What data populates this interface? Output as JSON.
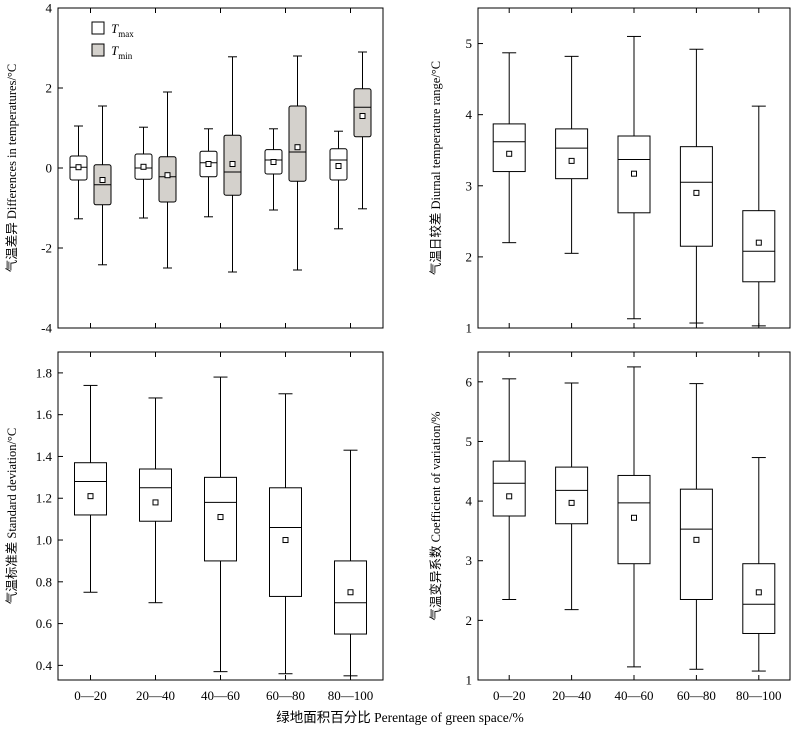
{
  "figure": {
    "x_axis_title": "绿地面积百分比 Perentage of green space/%"
  },
  "chart_data": [
    {
      "type": "box",
      "id": "a",
      "categories": [
        "0—20",
        "20—40",
        "40—60",
        "60—80",
        "80—100"
      ],
      "ylabel": "气温差异 Differences in temperatures/°C",
      "ylim": [
        -4,
        4
      ],
      "yticks": [
        -4,
        -2,
        0,
        2,
        4
      ],
      "legend": {
        "placement": "top-left",
        "items": [
          {
            "symbol": "T",
            "sub": "max",
            "fill": "#ffffff"
          },
          {
            "symbol": "T",
            "sub": "min",
            "fill": "#d4d1cc"
          }
        ]
      },
      "series": [
        {
          "name": "Tmax",
          "fill": "#ffffff",
          "boxes": [
            {
              "min": -1.27,
              "q1": -0.3,
              "median": 0.02,
              "q3": 0.3,
              "max": 1.05,
              "mean": 0.02
            },
            {
              "min": -1.25,
              "q1": -0.28,
              "median": 0.0,
              "q3": 0.35,
              "max": 1.02,
              "mean": 0.03
            },
            {
              "min": -1.22,
              "q1": -0.22,
              "median": 0.13,
              "q3": 0.42,
              "max": 0.98,
              "mean": 0.1
            },
            {
              "min": -1.05,
              "q1": -0.15,
              "median": 0.2,
              "q3": 0.46,
              "max": 0.98,
              "mean": 0.15
            },
            {
              "min": -1.52,
              "q1": -0.3,
              "median": 0.2,
              "q3": 0.48,
              "max": 0.92,
              "mean": 0.05
            }
          ]
        },
        {
          "name": "Tmin",
          "fill": "#d4d1cc",
          "boxes": [
            {
              "min": -2.42,
              "q1": -0.92,
              "median": -0.42,
              "q3": 0.08,
              "max": 1.55,
              "mean": -0.3
            },
            {
              "min": -2.5,
              "q1": -0.85,
              "median": -0.22,
              "q3": 0.28,
              "max": 1.9,
              "mean": -0.18
            },
            {
              "min": -2.6,
              "q1": -0.68,
              "median": -0.1,
              "q3": 0.82,
              "max": 2.78,
              "mean": 0.1
            },
            {
              "min": -2.55,
              "q1": -0.33,
              "median": 0.4,
              "q3": 1.55,
              "max": 2.8,
              "mean": 0.52
            },
            {
              "min": -1.02,
              "q1": 0.78,
              "median": 1.52,
              "q3": 1.98,
              "max": 2.9,
              "mean": 1.3
            }
          ]
        }
      ]
    },
    {
      "type": "box",
      "id": "b",
      "categories": [
        "0—20",
        "20—40",
        "40—60",
        "60—80",
        "80—100"
      ],
      "ylabel": "气温日较差 Diurnal temperature range/°C",
      "ylim": [
        1,
        5.5
      ],
      "yticks": [
        1,
        2,
        3,
        4,
        5
      ],
      "series": [
        {
          "fill": "#ffffff",
          "boxes": [
            {
              "min": 2.2,
              "q1": 3.2,
              "median": 3.62,
              "q3": 3.87,
              "max": 4.87,
              "mean": 3.45
            },
            {
              "min": 2.05,
              "q1": 3.1,
              "median": 3.53,
              "q3": 3.8,
              "max": 4.82,
              "mean": 3.35
            },
            {
              "min": 1.13,
              "q1": 2.62,
              "median": 3.37,
              "q3": 3.7,
              "max": 5.1,
              "mean": 3.17
            },
            {
              "min": 1.07,
              "q1": 2.15,
              "median": 3.05,
              "q3": 3.55,
              "max": 4.92,
              "mean": 2.9
            },
            {
              "min": 1.03,
              "q1": 1.65,
              "median": 2.08,
              "q3": 2.65,
              "max": 4.12,
              "mean": 2.2
            }
          ]
        }
      ]
    },
    {
      "type": "box",
      "id": "c",
      "categories": [
        "0—20",
        "20—40",
        "40—60",
        "60—80",
        "80—100"
      ],
      "ylabel": "气温标准差 Standard deviation/°C",
      "ylim": [
        0.33,
        1.9
      ],
      "yticks": [
        0.4,
        0.6,
        0.8,
        1.0,
        1.2,
        1.4,
        1.6,
        1.8
      ],
      "series": [
        {
          "fill": "#ffffff",
          "boxes": [
            {
              "min": 0.75,
              "q1": 1.12,
              "median": 1.28,
              "q3": 1.37,
              "max": 1.74,
              "mean": 1.21
            },
            {
              "min": 0.7,
              "q1": 1.09,
              "median": 1.25,
              "q3": 1.34,
              "max": 1.68,
              "mean": 1.18
            },
            {
              "min": 0.37,
              "q1": 0.9,
              "median": 1.18,
              "q3": 1.3,
              "max": 1.78,
              "mean": 1.11
            },
            {
              "min": 0.36,
              "q1": 0.73,
              "median": 1.06,
              "q3": 1.25,
              "max": 1.7,
              "mean": 1.0
            },
            {
              "min": 0.35,
              "q1": 0.55,
              "median": 0.7,
              "q3": 0.9,
              "max": 1.43,
              "mean": 0.75
            }
          ]
        }
      ]
    },
    {
      "type": "box",
      "id": "d",
      "categories": [
        "0—20",
        "20—40",
        "40—60",
        "60—80",
        "80—100"
      ],
      "ylabel": "气温变异系数 Coefficient of variation/%",
      "ylim": [
        1,
        6.5
      ],
      "yticks": [
        1,
        2,
        3,
        4,
        5,
        6
      ],
      "series": [
        {
          "fill": "#ffffff",
          "boxes": [
            {
              "min": 2.35,
              "q1": 3.75,
              "median": 4.3,
              "q3": 4.67,
              "max": 6.05,
              "mean": 4.08
            },
            {
              "min": 2.18,
              "q1": 3.62,
              "median": 4.18,
              "q3": 4.57,
              "max": 5.98,
              "mean": 3.97
            },
            {
              "min": 1.22,
              "q1": 2.95,
              "median": 3.97,
              "q3": 4.43,
              "max": 6.25,
              "mean": 3.72
            },
            {
              "min": 1.18,
              "q1": 2.35,
              "median": 3.53,
              "q3": 4.2,
              "max": 5.97,
              "mean": 3.35
            },
            {
              "min": 1.15,
              "q1": 1.78,
              "median": 2.27,
              "q3": 2.95,
              "max": 4.73,
              "mean": 2.47
            }
          ]
        }
      ]
    }
  ]
}
